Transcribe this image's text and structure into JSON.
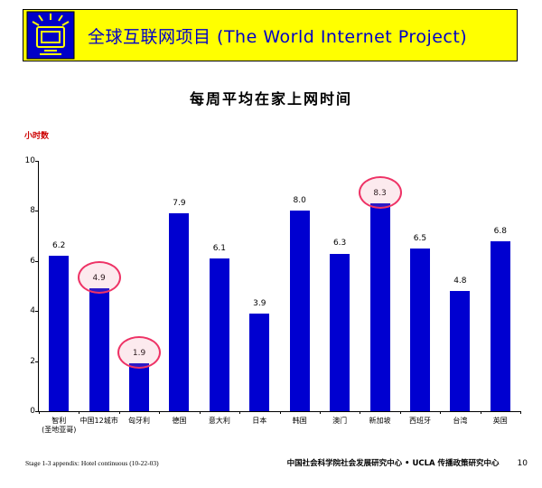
{
  "header": {
    "title": "全球互联网项目 (The World Internet Project)",
    "banner_color": "#FFFF00",
    "title_color": "#0000C8",
    "logo_icon": "computer-monitor-burst-icon"
  },
  "slide_title": "每周平均在家上网时间",
  "chart_data": {
    "type": "bar",
    "title": "每周平均在家上网时间",
    "xlabel": "",
    "ylabel": "小时数",
    "ylim": [
      0,
      10
    ],
    "yticks": [
      0,
      2,
      4,
      6,
      8,
      10
    ],
    "grid": false,
    "legend": null,
    "bar_color": "#0000D0",
    "categories": [
      "智利\n(圣地亚哥)",
      "中国12城市",
      "匈牙利",
      "德国",
      "意大利",
      "日本",
      "韩国",
      "澳门",
      "新加坡",
      "西班牙",
      "台湾",
      "英国"
    ],
    "values": [
      6.2,
      4.9,
      1.9,
      7.9,
      6.1,
      3.9,
      8.0,
      6.3,
      8.3,
      6.5,
      4.8,
      6.8
    ],
    "value_labels": [
      "6.2",
      "4.9",
      "1.9",
      "7.9",
      "6.1",
      "3.9",
      "8.0",
      "6.3",
      "8.3",
      "6.5",
      "4.8",
      "6.8"
    ],
    "highlighted_indices": [
      1,
      2,
      8
    ],
    "highlight_color": "#EE3366"
  },
  "footer": {
    "left": "Stage 1-3 appendix: Hotel continuous (10-22-03)",
    "center": "中国社会科学院社会发展研究中心 • UCLA 传播政策研究中心",
    "page_number": "10"
  }
}
